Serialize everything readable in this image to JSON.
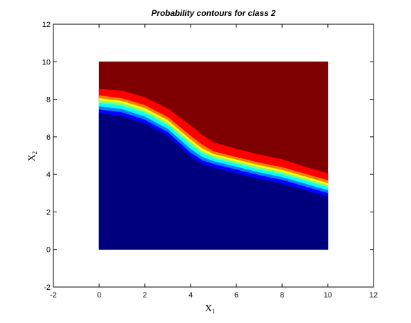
{
  "chart_data": {
    "type": "filled-contour",
    "title": "Probability contours for class 2",
    "xlabel": {
      "base": "X",
      "sub": "1"
    },
    "ylabel": {
      "base": "X",
      "sub": "2"
    },
    "xlim": [
      -2,
      12
    ],
    "ylim": [
      -2,
      12
    ],
    "xticks": [
      -2,
      0,
      2,
      4,
      6,
      8,
      10,
      12
    ],
    "yticks": [
      -2,
      0,
      2,
      4,
      6,
      8,
      10,
      12
    ],
    "grid": false,
    "legend": "none",
    "domain": {
      "x": [
        0,
        10
      ],
      "y": [
        0,
        10
      ]
    },
    "levels": [
      {
        "color": "#00007F",
        "upper": [
          [
            0,
            7.25
          ],
          [
            1,
            7.1
          ],
          [
            2,
            6.7
          ],
          [
            3,
            6.05
          ],
          [
            4,
            4.95
          ],
          [
            4.5,
            4.55
          ],
          [
            5,
            4.35
          ],
          [
            6,
            4.05
          ],
          [
            7,
            3.75
          ],
          [
            8,
            3.5
          ],
          [
            9,
            3.15
          ],
          [
            10,
            2.8
          ]
        ]
      },
      {
        "color": "#0000FF",
        "upper": [
          [
            0,
            7.45
          ],
          [
            1,
            7.3
          ],
          [
            2,
            6.9
          ],
          [
            3,
            6.25
          ],
          [
            4,
            5.15
          ],
          [
            4.5,
            4.75
          ],
          [
            5,
            4.55
          ],
          [
            6,
            4.25
          ],
          [
            7,
            3.95
          ],
          [
            8,
            3.7
          ],
          [
            9,
            3.35
          ],
          [
            10,
            3.0
          ]
        ]
      },
      {
        "color": "#007FFF",
        "upper": [
          [
            0,
            7.62
          ],
          [
            1,
            7.47
          ],
          [
            2,
            7.07
          ],
          [
            3,
            6.42
          ],
          [
            4,
            5.35
          ],
          [
            4.5,
            4.93
          ],
          [
            5,
            4.7
          ],
          [
            6,
            4.4
          ],
          [
            7,
            4.1
          ],
          [
            8,
            3.85
          ],
          [
            9,
            3.5
          ],
          [
            10,
            3.15
          ]
        ]
      },
      {
        "color": "#00FFFF",
        "upper": [
          [
            0,
            7.8
          ],
          [
            1,
            7.65
          ],
          [
            2,
            7.25
          ],
          [
            3,
            6.6
          ],
          [
            4,
            5.55
          ],
          [
            4.5,
            5.1
          ],
          [
            5,
            4.85
          ],
          [
            6,
            4.55
          ],
          [
            7,
            4.25
          ],
          [
            8,
            4.0
          ],
          [
            9,
            3.65
          ],
          [
            10,
            3.3
          ]
        ]
      },
      {
        "color": "#7FFF7F",
        "upper": [
          [
            0,
            7.95
          ],
          [
            1,
            7.8
          ],
          [
            2,
            7.4
          ],
          [
            3,
            6.75
          ],
          [
            4,
            5.72
          ],
          [
            4.5,
            5.25
          ],
          [
            5,
            4.98
          ],
          [
            6,
            4.68
          ],
          [
            7,
            4.38
          ],
          [
            8,
            4.13
          ],
          [
            9,
            3.78
          ],
          [
            10,
            3.43
          ]
        ]
      },
      {
        "color": "#FFFF00",
        "upper": [
          [
            0,
            8.05
          ],
          [
            1,
            7.9
          ],
          [
            2,
            7.52
          ],
          [
            3,
            6.88
          ],
          [
            4,
            5.85
          ],
          [
            4.5,
            5.38
          ],
          [
            5,
            5.08
          ],
          [
            6,
            4.78
          ],
          [
            7,
            4.48
          ],
          [
            8,
            4.23
          ],
          [
            9,
            3.88
          ],
          [
            10,
            3.53
          ]
        ]
      },
      {
        "color": "#FF7F00",
        "upper": [
          [
            0,
            8.2
          ],
          [
            1,
            8.05
          ],
          [
            2,
            7.68
          ],
          [
            3,
            7.05
          ],
          [
            4,
            6.05
          ],
          [
            4.5,
            5.58
          ],
          [
            5,
            5.22
          ],
          [
            6,
            4.92
          ],
          [
            7,
            4.62
          ],
          [
            8,
            4.38
          ],
          [
            9,
            4.03
          ],
          [
            10,
            3.68
          ]
        ]
      },
      {
        "color": "#FF0000",
        "upper": [
          [
            0,
            8.55
          ],
          [
            1,
            8.45
          ],
          [
            2,
            8.1
          ],
          [
            3,
            7.5
          ],
          [
            4,
            6.6
          ],
          [
            4.5,
            6.1
          ],
          [
            5,
            5.7
          ],
          [
            6,
            5.35
          ],
          [
            7,
            5.05
          ],
          [
            8,
            4.8
          ],
          [
            9,
            4.4
          ],
          [
            10,
            4.05
          ]
        ]
      },
      {
        "color": "#7F0000",
        "upper": [
          [
            0,
            10
          ],
          [
            10,
            10
          ]
        ]
      }
    ]
  }
}
